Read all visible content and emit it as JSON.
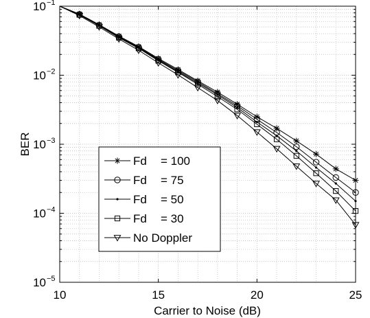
{
  "chart_data": {
    "type": "line",
    "title": "",
    "xlabel": "Carrier to Noise (dB)",
    "ylabel": "BER",
    "x": [
      10,
      11,
      12,
      13,
      14,
      15,
      16,
      17,
      18,
      19,
      20,
      21,
      22,
      23,
      24,
      25
    ],
    "xlim": [
      10,
      25
    ],
    "ylim": [
      1e-05,
      0.1
    ],
    "yscale": "log",
    "xticks": [
      10,
      15,
      20,
      25
    ],
    "yticks": [
      {
        "value": 1e-05,
        "base": "10",
        "exp": "−5"
      },
      {
        "value": 0.0001,
        "base": "10",
        "exp": "−4"
      },
      {
        "value": 0.001,
        "base": "10",
        "exp": "−3"
      },
      {
        "value": 0.01,
        "base": "10",
        "exp": "−2"
      },
      {
        "value": 0.1,
        "base": "10",
        "exp": "−1"
      }
    ],
    "grid": true,
    "legend_position": "lower-left",
    "series": [
      {
        "name_label": "Fd",
        "name_value": "= 100",
        "marker": "star",
        "values": [
          0.1,
          0.077,
          0.054,
          0.037,
          0.026,
          0.0175,
          0.0121,
          0.0083,
          0.0057,
          0.0038,
          0.0025,
          0.0017,
          0.00112,
          0.00072,
          0.00044,
          0.0003
        ]
      },
      {
        "name_label": "Fd",
        "name_value": "= 75",
        "marker": "circle",
        "values": [
          0.1,
          0.076,
          0.053,
          0.036,
          0.0255,
          0.017,
          0.0117,
          0.008,
          0.0054,
          0.0036,
          0.0023,
          0.00148,
          0.00092,
          0.00055,
          0.00033,
          0.0002
        ]
      },
      {
        "name_label": "Fd",
        "name_value": "= 50",
        "marker": "dot",
        "values": [
          0.1,
          0.0755,
          0.0525,
          0.0355,
          0.025,
          0.0166,
          0.0113,
          0.0077,
          0.0052,
          0.0034,
          0.0021,
          0.00133,
          0.0008,
          0.00046,
          0.00027,
          0.00015
        ]
      },
      {
        "name_label": "Fd",
        "name_value": "= 30",
        "marker": "square",
        "values": [
          0.1,
          0.075,
          0.052,
          0.035,
          0.0245,
          0.0162,
          0.011,
          0.0074,
          0.0049,
          0.0032,
          0.00195,
          0.00118,
          0.00068,
          0.00038,
          0.00021,
          0.000108
        ]
      },
      {
        "name_label": "No Doppler",
        "name_value": "",
        "marker": "triangle-down",
        "values": [
          0.1,
          0.073,
          0.05,
          0.0335,
          0.023,
          0.0151,
          0.0101,
          0.0066,
          0.0043,
          0.0026,
          0.0015,
          0.00086,
          0.00048,
          0.00027,
          0.000155,
          6.8e-05
        ]
      }
    ]
  }
}
